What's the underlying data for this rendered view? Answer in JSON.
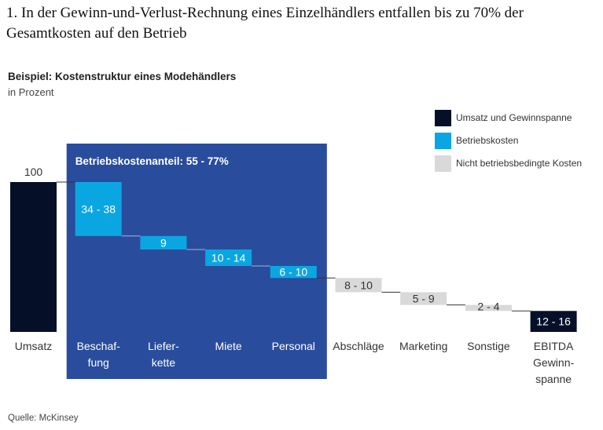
{
  "title": "1. In der Gewinn-und-Verlust-Rechnung eines Einzelhändlers entfallen bis zu 70% der Gesamtkosten auf den Betrieb",
  "subtitle": "Beispiel: Kostenstruktur eines Modehändlers",
  "unit": "in Prozent",
  "source": "Quelle: McKinsey",
  "colors": {
    "revenue": "#051028",
    "operating": "#0aa6e2",
    "non_operating": "#d9d9d9",
    "highlight_box": "#2a4c9c",
    "connector": "#333333"
  },
  "legend": [
    {
      "label": "Umsatz und Gewinnspanne",
      "kind": "revenue"
    },
    {
      "label": "Betriebskosten",
      "kind": "operating"
    },
    {
      "label": "Nicht betriebsbedingte Kosten",
      "kind": "non_operating"
    }
  ],
  "chart_data": {
    "type": "bar",
    "subtype": "waterfall",
    "title": "Beispiel: Kostenstruktur eines Modehändlers",
    "ylabel": "in Prozent",
    "ylim": [
      0,
      100
    ],
    "grid": false,
    "legend_position": "top-right",
    "highlight": {
      "label": "Betriebskostenanteil: 55 - 77%",
      "categories": [
        "Beschaf-fung",
        "Liefer-kette",
        "Miete",
        "Personal"
      ]
    },
    "categories": [
      "Umsatz",
      "Beschaf-\nfung",
      "Liefer-\nkette",
      "Miete",
      "Personal",
      "Abschläge",
      "Marketing",
      "Sonstige",
      "EBITDA\nGewinn-\nspanne"
    ],
    "items": [
      {
        "category": "Umsatz",
        "lines": [
          "Umsatz"
        ],
        "label": "100",
        "low": 100,
        "high": 100,
        "value": 100,
        "kind": "revenue",
        "type": "total"
      },
      {
        "category": "Beschaffung",
        "lines": [
          "Beschaf-",
          "fung"
        ],
        "label": "34 - 38",
        "low": 34,
        "high": 38,
        "value": 36,
        "kind": "operating",
        "type": "delta"
      },
      {
        "category": "Lieferkette",
        "lines": [
          "Liefer-",
          "kette"
        ],
        "label": "9",
        "low": 9,
        "high": 9,
        "value": 9,
        "kind": "operating",
        "type": "delta"
      },
      {
        "category": "Miete",
        "lines": [
          "Miete"
        ],
        "label": "10 - 14",
        "low": 10,
        "high": 14,
        "value": 11,
        "kind": "operating",
        "type": "delta"
      },
      {
        "category": "Personal",
        "lines": [
          "Personal"
        ],
        "label": "6 - 10",
        "low": 6,
        "high": 10,
        "value": 8,
        "kind": "operating",
        "type": "delta"
      },
      {
        "category": "Abschläge",
        "lines": [
          "Abschläge"
        ],
        "label": "8 - 10",
        "low": 8,
        "high": 10,
        "value": 9.5,
        "kind": "non_operating",
        "type": "delta"
      },
      {
        "category": "Marketing",
        "lines": [
          "Marketing"
        ],
        "label": "5 - 9",
        "low": 5,
        "high": 9,
        "value": 8.5,
        "kind": "non_operating",
        "type": "delta"
      },
      {
        "category": "Sonstige",
        "lines": [
          "Sonstige"
        ],
        "label": "2 - 4",
        "low": 2,
        "high": 4,
        "value": 4,
        "kind": "non_operating",
        "type": "delta"
      },
      {
        "category": "EBITDA Gewinnspanne",
        "lines": [
          "EBITDA",
          "Gewinn-",
          "spanne"
        ],
        "label": "12 - 16",
        "low": 12,
        "high": 16,
        "value": 14,
        "kind": "revenue",
        "type": "total"
      }
    ]
  }
}
